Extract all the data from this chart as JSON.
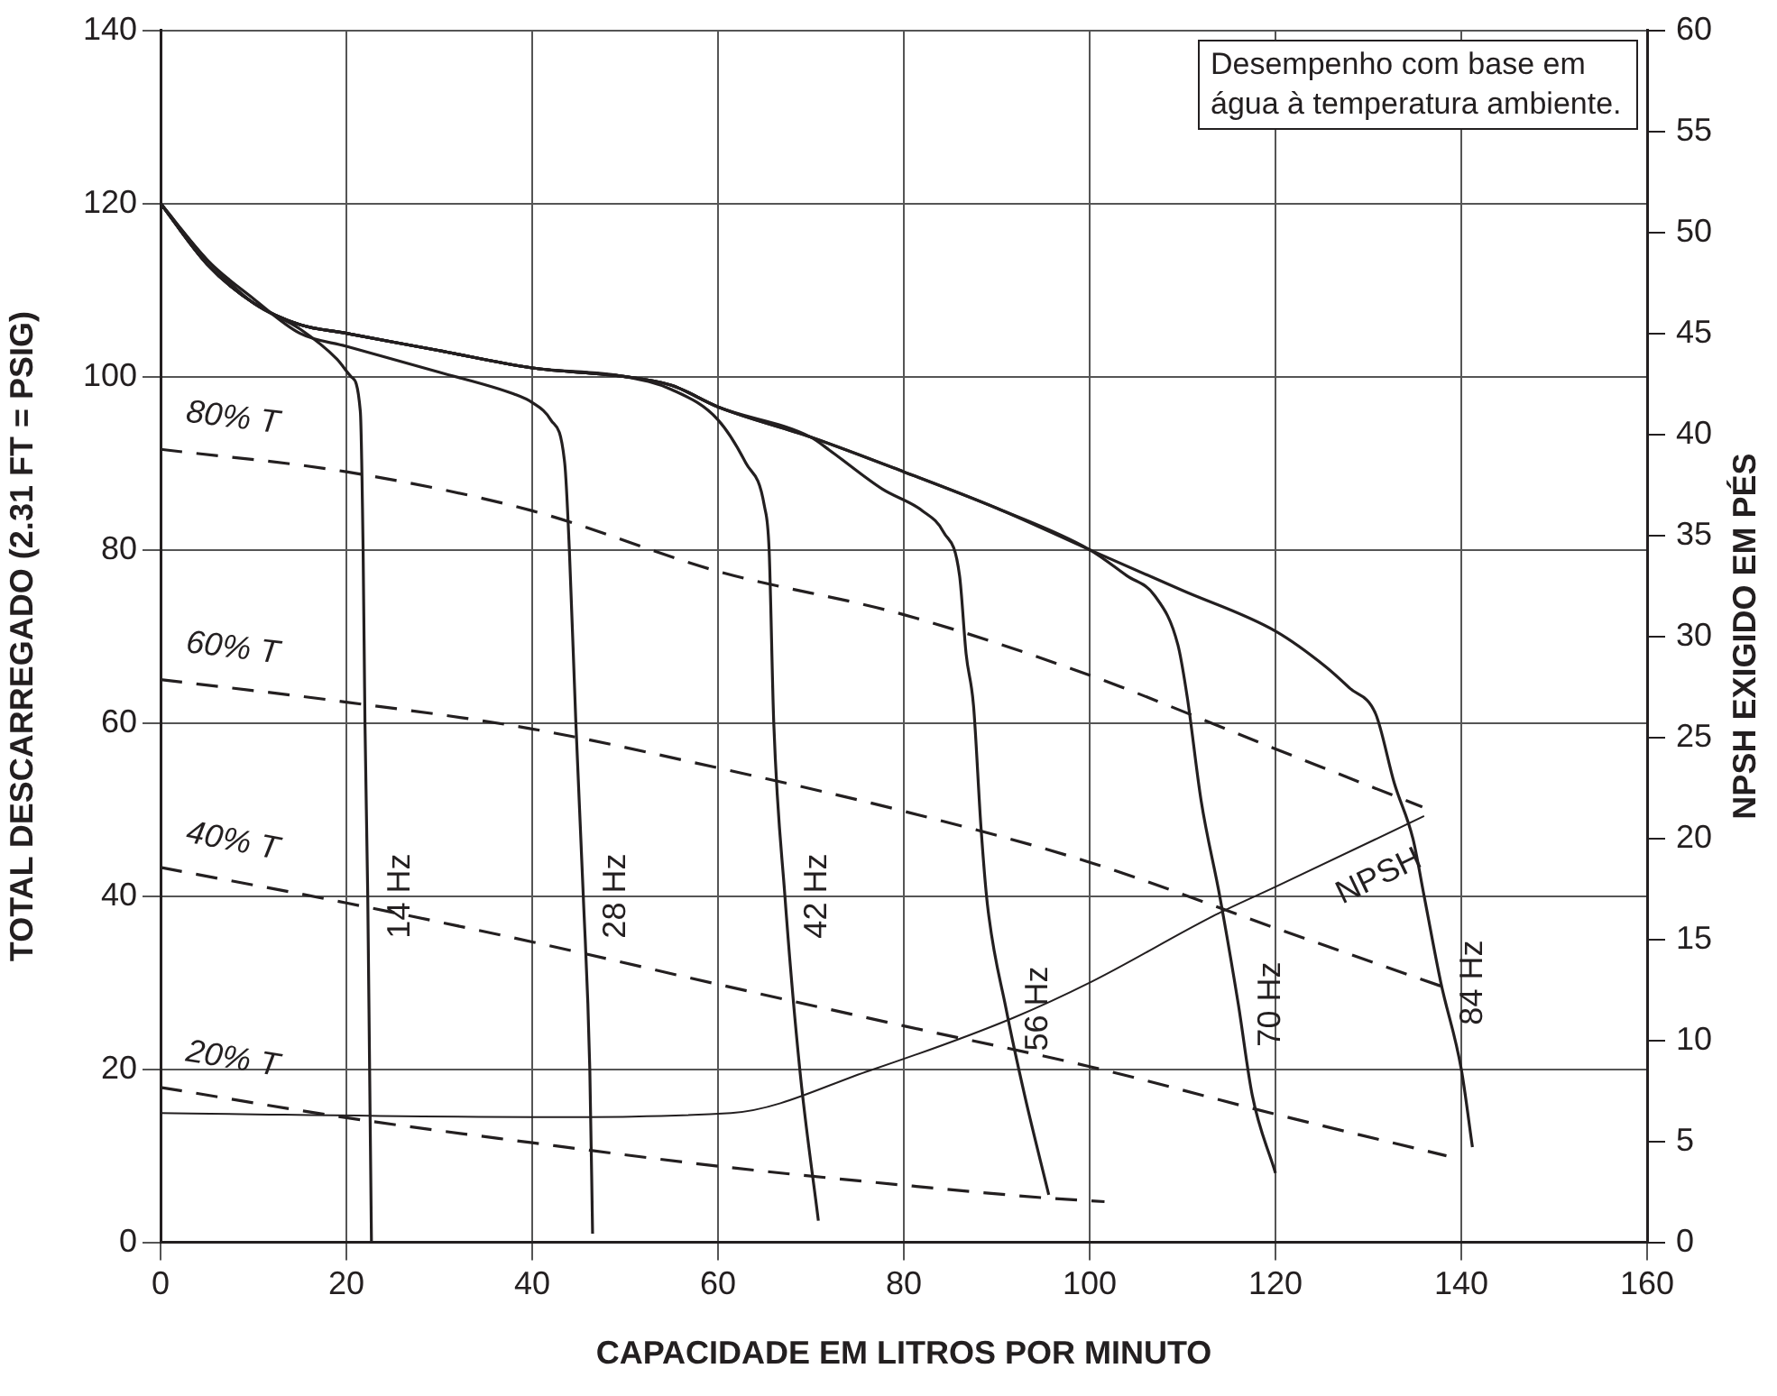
{
  "chart_data": {
    "type": "line",
    "xlabel": "CAPACIDADE EM LITROS POR MINUTO",
    "ylabel": "TOTAL DESCARREGADO (2.31 FT = PSIG)",
    "y2label": "NPSH EXIGIDO EM PÉS",
    "annotations": [
      "Desempenho com base em água à temperatura ambiente."
    ],
    "xlim": [
      0,
      160
    ],
    "xticks": [
      0,
      20,
      40,
      60,
      80,
      100,
      120,
      140,
      160
    ],
    "ylim": [
      0,
      140
    ],
    "yticks": [
      0,
      20,
      40,
      60,
      80,
      100,
      120,
      140
    ],
    "y2lim": [
      0,
      60
    ],
    "y2ticks": [
      0,
      5,
      10,
      15,
      20,
      25,
      30,
      35,
      40,
      45,
      50,
      55,
      60
    ],
    "grid": true,
    "legend": false,
    "marker": "none",
    "series": [
      {
        "name": "14 Hz",
        "color": "#231f20",
        "line_style": "solid",
        "x": [
          0,
          5,
          10,
          15,
          19,
          20.5,
          21.5,
          21.8,
          22,
          22.3,
          22.5,
          22.7
        ],
        "values": [
          120,
          113.5,
          108.5,
          105.5,
          102,
          100,
          96,
          80,
          60,
          40,
          20,
          0
        ]
      },
      {
        "name": "28 Hz",
        "color": "#231f20",
        "line_style": "solid",
        "x": [
          0,
          5,
          10,
          15,
          20,
          30,
          38,
          40,
          42,
          43.5,
          44,
          44.7,
          45.5,
          46.2,
          46.5
        ],
        "values": [
          120,
          113.5,
          109,
          105,
          103.5,
          100.5,
          98,
          97,
          95,
          90,
          80,
          60,
          40,
          20,
          1
        ]
      },
      {
        "name": "42 Hz",
        "color": "#231f20",
        "line_style": "solid",
        "x": [
          0,
          5,
          10,
          15,
          20,
          30,
          40,
          50,
          55,
          60,
          63,
          65,
          65.5,
          66,
          67.2,
          68.8,
          70.8
        ],
        "values": [
          120,
          113,
          108.5,
          106,
          105,
          103,
          101,
          100,
          98.5,
          95,
          90,
          85,
          80,
          60,
          40,
          20,
          2.5
        ]
      },
      {
        "name": "56 Hz",
        "color": "#231f20",
        "line_style": "solid",
        "x": [
          0,
          5,
          10,
          15,
          20,
          30,
          40,
          50,
          55,
          60,
          70,
          72,
          77.7,
          82,
          84.3,
          86,
          86.7,
          87.5,
          88.3,
          89,
          91,
          93,
          95.6
        ],
        "values": [
          120,
          113,
          108.5,
          106,
          105,
          103,
          101,
          100,
          99,
          96.5,
          93,
          91.5,
          87,
          84.5,
          82,
          77,
          68,
          62,
          48,
          39,
          27,
          17,
          5.5
        ]
      },
      {
        "name": "70 Hz",
        "color": "#231f20",
        "line_style": "solid",
        "x": [
          0,
          5,
          10,
          15,
          20,
          30,
          40,
          50,
          55,
          60,
          70,
          80,
          90,
          100,
          104,
          107,
          109.5,
          110.5,
          112,
          114,
          116,
          117.5,
          120
        ],
        "values": [
          120,
          113,
          108.5,
          106,
          105,
          103,
          101,
          100,
          99,
          96.5,
          93,
          89,
          84.8,
          80,
          77,
          74.7,
          69,
          63,
          51,
          40,
          27.5,
          17,
          8
        ]
      },
      {
        "name": "84 Hz",
        "color": "#231f20",
        "line_style": "solid",
        "x": [
          0,
          5,
          10,
          15,
          20,
          30,
          40,
          50,
          55,
          60,
          70,
          80,
          90,
          100,
          110,
          120,
          125.4,
          128,
          130.8,
          132.8,
          134.8,
          136,
          137.8,
          140,
          141.2
        ],
        "values": [
          120,
          113,
          108.5,
          106,
          105,
          103,
          101,
          100,
          99,
          96.5,
          93,
          89,
          84.8,
          80,
          75.3,
          70.6,
          66.5,
          64,
          61,
          53,
          46.6,
          40,
          30,
          20,
          11
        ]
      },
      {
        "name": "80% T",
        "color": "#231f20",
        "line_style": "dashed",
        "x": [
          0,
          20,
          40,
          60,
          80,
          100,
          120,
          135.8
        ],
        "values": [
          91.6,
          89,
          84.5,
          77.5,
          72.5,
          65.5,
          57,
          50.3
        ]
      },
      {
        "name": "60% T",
        "color": "#231f20",
        "line_style": "dashed",
        "x": [
          0,
          20,
          40,
          60,
          80,
          100,
          120,
          137.8
        ],
        "values": [
          65,
          62.4,
          59.3,
          54.8,
          49.8,
          43.9,
          36.3,
          29.6
        ]
      },
      {
        "name": "40% T",
        "color": "#231f20",
        "line_style": "dashed",
        "x": [
          0,
          20,
          40,
          60,
          80,
          100,
          120,
          138.4
        ],
        "values": [
          43.3,
          39.2,
          34.7,
          29.8,
          25,
          20.3,
          14.8,
          10
        ]
      },
      {
        "name": "20% T",
        "color": "#231f20",
        "line_style": "dashed",
        "x": [
          0,
          20,
          40,
          60,
          80,
          95.6,
          101.6
        ],
        "values": [
          17.9,
          14.4,
          11.5,
          8.8,
          6.6,
          5.1,
          4.7
        ]
      },
      {
        "name": "NPSH",
        "color": "#231f20",
        "line_style": "solid",
        "axis": "y2",
        "x": [
          0,
          40,
          61.4,
          76.3,
          91.7,
          100.2,
          113.5,
          120,
          136
        ],
        "values": [
          6.4,
          6.2,
          6.4,
          8.5,
          11.1,
          12.9,
          16.2,
          17.6,
          21.1
        ]
      }
    ]
  }
}
